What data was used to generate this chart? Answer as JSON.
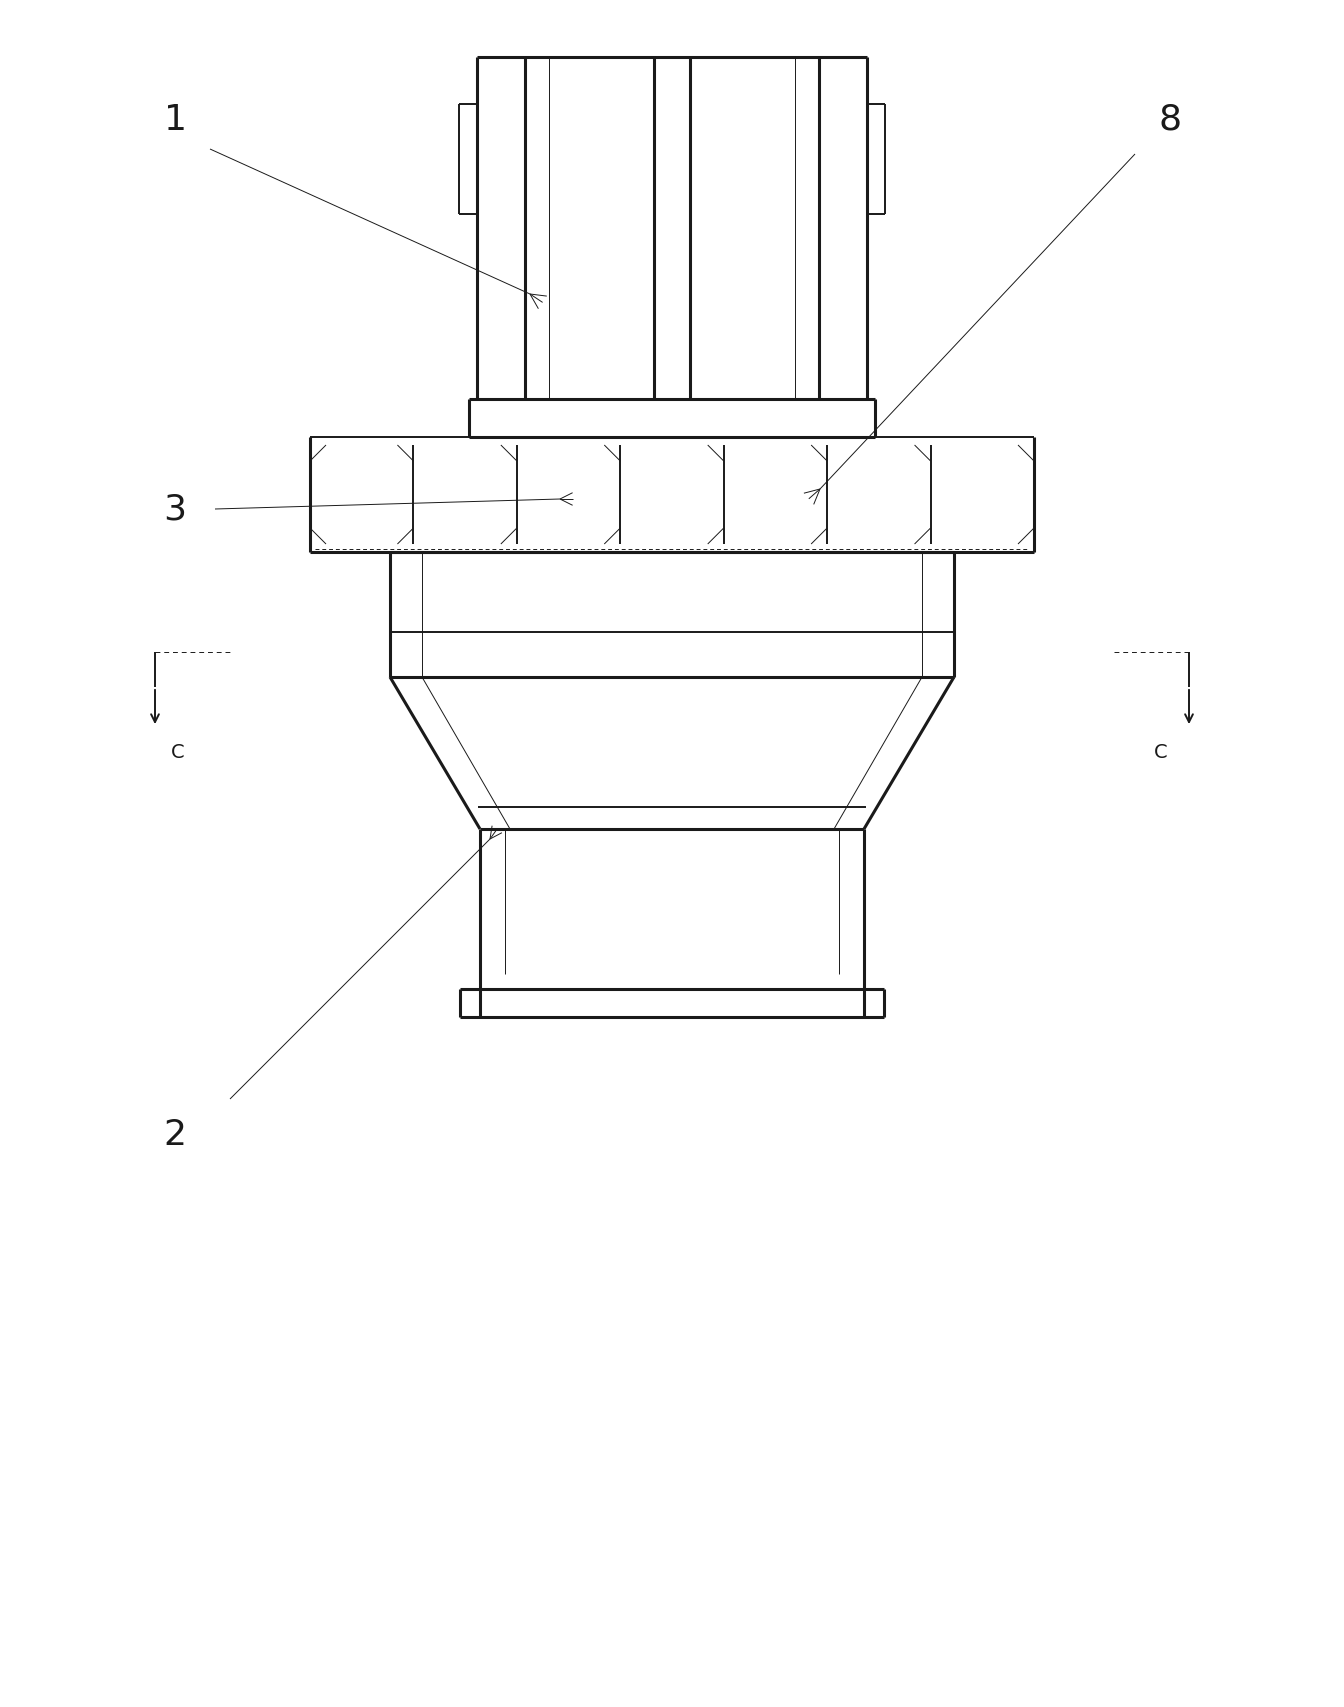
{
  "bg_color": "#ffffff",
  "line_color": "#1a1a1a",
  "lw_thin": 0.7,
  "lw_med": 1.4,
  "lw_thick": 2.2,
  "label_fontsize": 26,
  "c_label_fontsize": 14
}
